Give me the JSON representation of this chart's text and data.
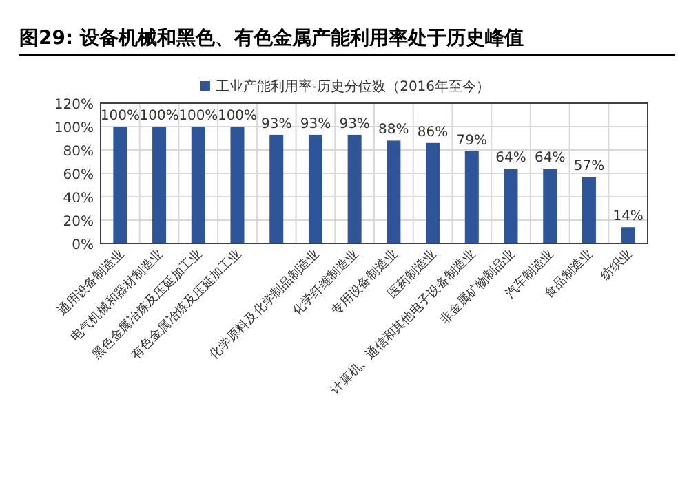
{
  "chart_data": {
    "type": "bar",
    "title": "图29: 设备机械和黑色、有色金属产能利用率处于历史峰值",
    "categories": [
      "通用设备制造业",
      "电气机械和器材制造业",
      "黑色金属冶炼及压延加工业",
      "有色金属冶炼及压延加工业",
      null,
      "化学原料及化学制品制造业",
      "化学纤维制造业",
      "专用设备制造业",
      "医药制造业",
      "计算机、通信和其他电子设备制造业",
      "非金属矿物制品业",
      "汽车制造业",
      "食品制造业",
      "纺织业"
    ],
    "series": [
      {
        "name": "工业产能利用率-历史分位数（2016年至今）",
        "color": "#2e5597",
        "values": [
          100,
          100,
          100,
          100,
          93,
          93,
          93,
          88,
          86,
          79,
          64,
          64,
          57,
          14
        ],
        "value_labels": [
          "100%",
          "100%",
          "100%",
          "100%",
          "93%",
          "93%",
          "93%",
          "88%",
          "86%",
          "79%",
          "64%",
          "64%",
          "57%",
          "14%"
        ]
      }
    ],
    "ylim": [
      0,
      120
    ],
    "yticks": [
      {
        "value": 0,
        "label": "0%"
      },
      {
        "value": 20,
        "label": "20%"
      },
      {
        "value": 40,
        "label": "40%"
      },
      {
        "value": 60,
        "label": "60%"
      },
      {
        "value": 80,
        "label": "80%"
      },
      {
        "value": 100,
        "label": "100%"
      },
      {
        "value": 120,
        "label": "120%"
      }
    ],
    "grid": true,
    "legend": "top"
  }
}
